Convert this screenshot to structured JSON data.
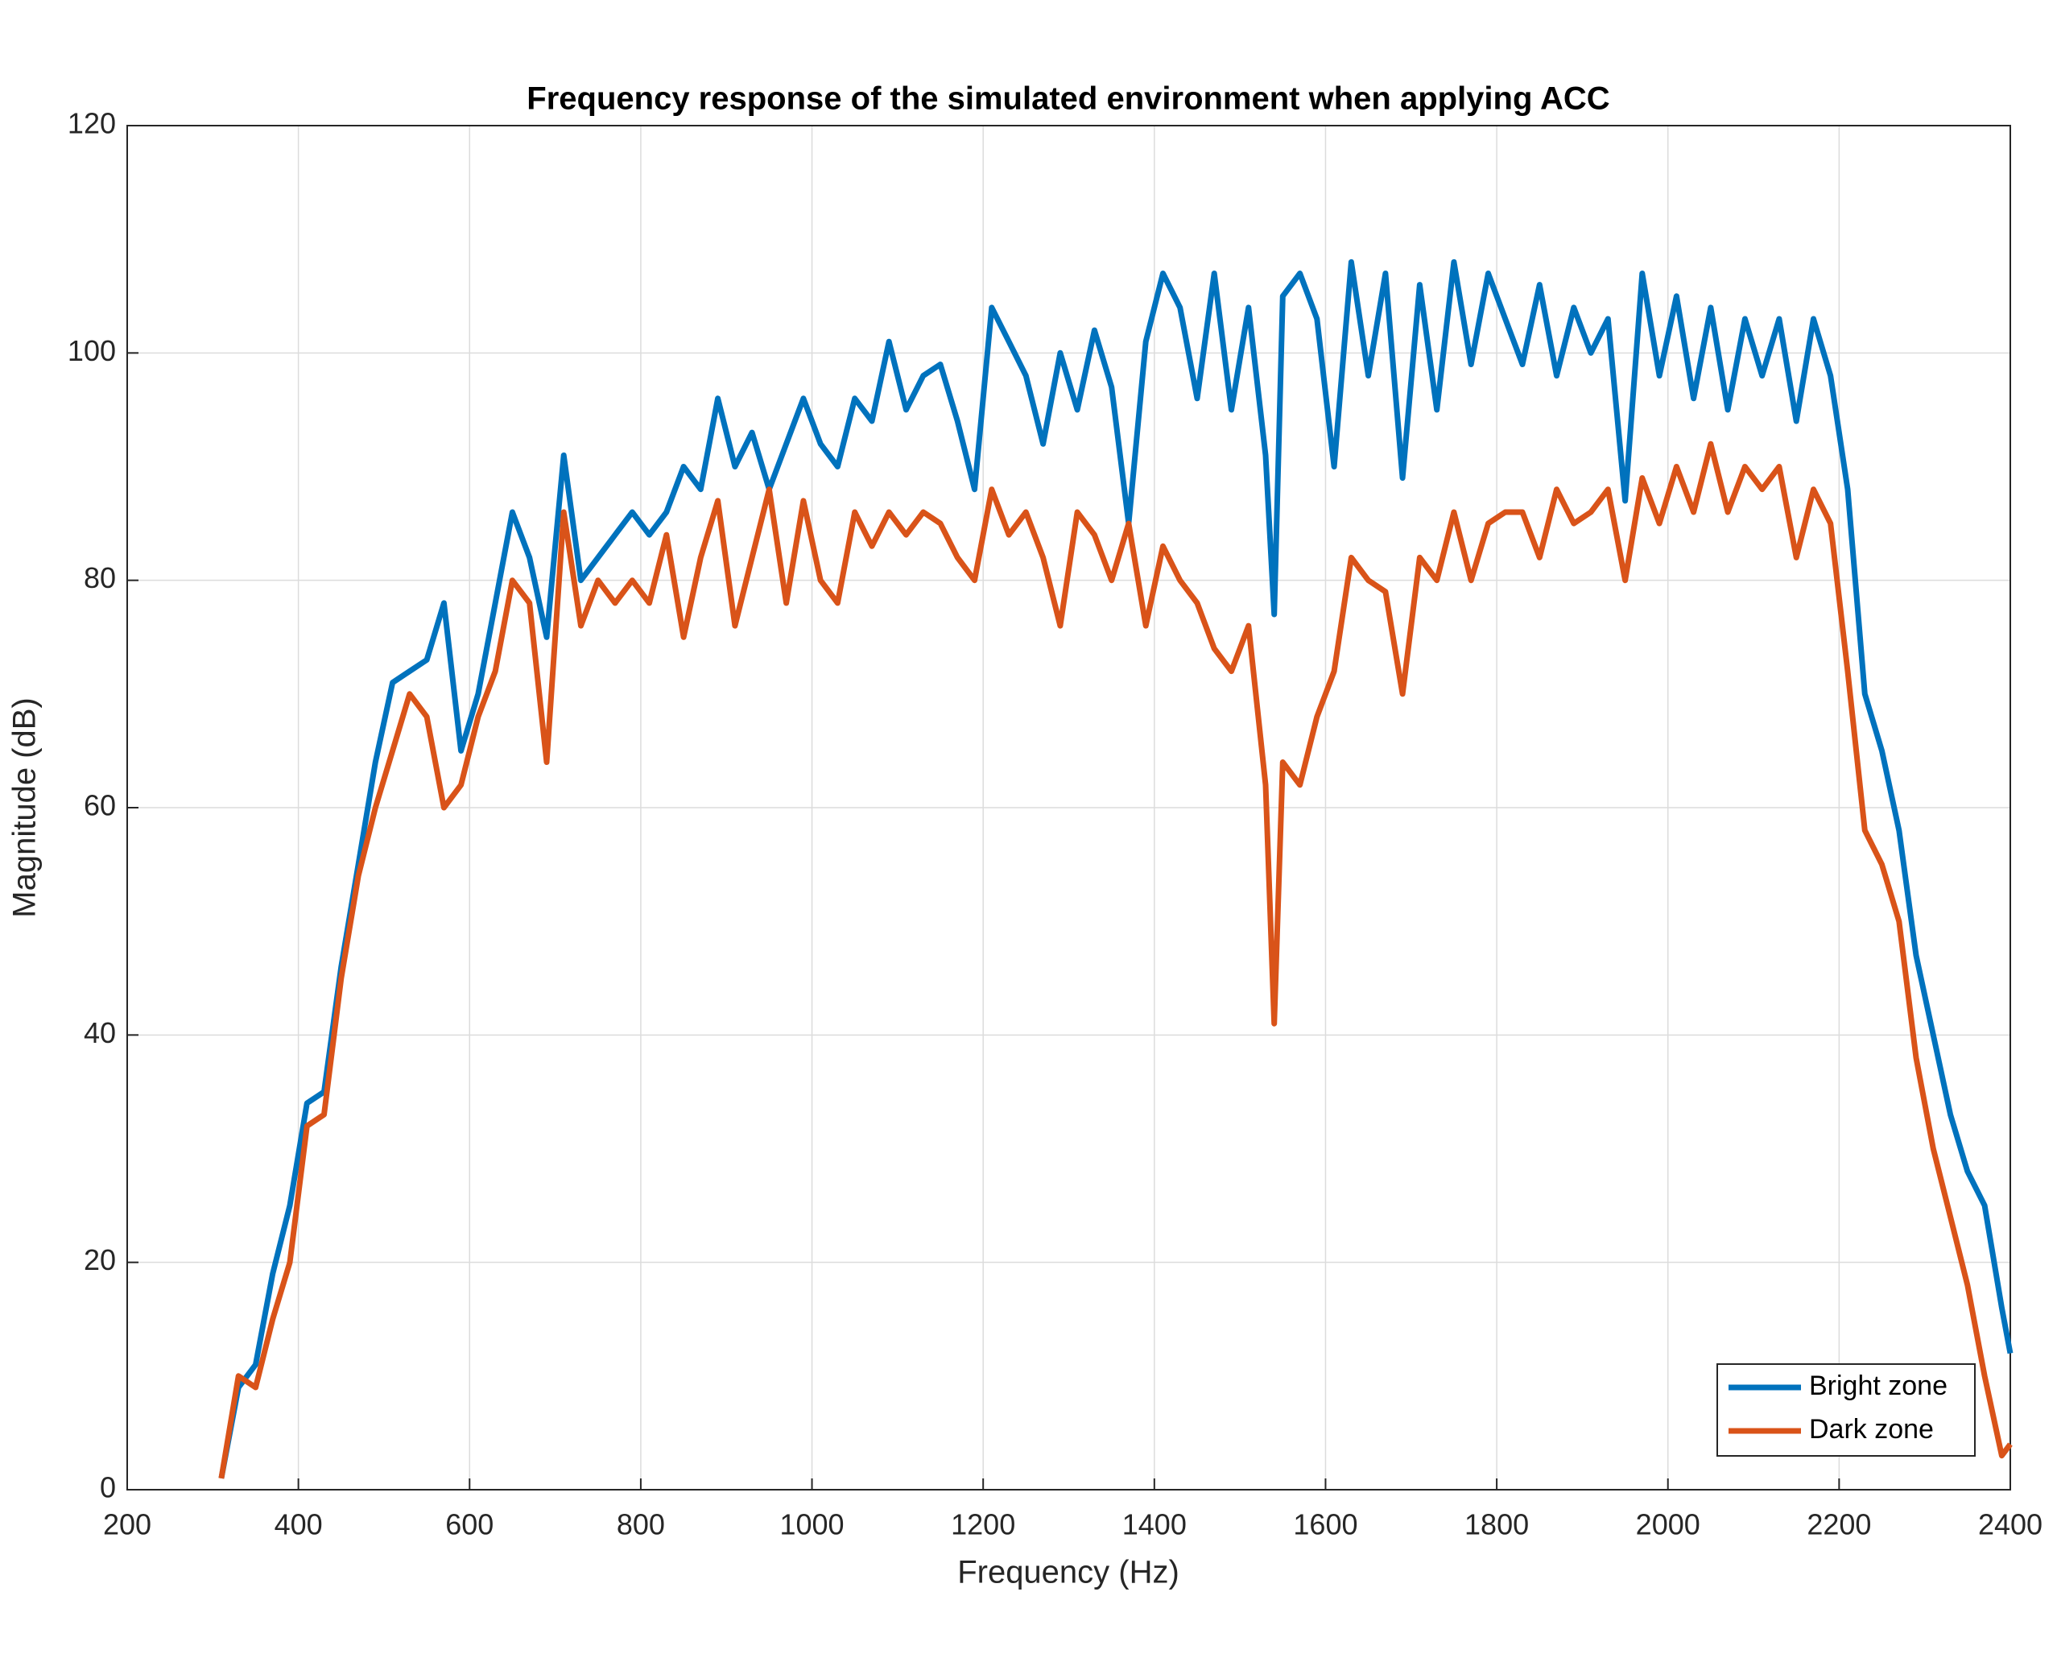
{
  "chart_data": {
    "type": "line",
    "title": "Frequency response of the simulated environment when applying ACC",
    "x_label": "Frequency (Hz)",
    "y_label": "Magnitude (dB)",
    "x": [
      310,
      330,
      350,
      370,
      390,
      410,
      430,
      450,
      470,
      490,
      510,
      530,
      550,
      570,
      590,
      610,
      630,
      650,
      670,
      690,
      710,
      730,
      750,
      770,
      790,
      810,
      830,
      850,
      870,
      890,
      910,
      930,
      950,
      970,
      990,
      1010,
      1030,
      1050,
      1070,
      1090,
      1110,
      1130,
      1150,
      1170,
      1190,
      1210,
      1230,
      1250,
      1270,
      1290,
      1310,
      1330,
      1350,
      1370,
      1390,
      1410,
      1430,
      1450,
      1470,
      1490,
      1510,
      1530,
      1540,
      1550,
      1570,
      1590,
      1610,
      1630,
      1650,
      1670,
      1690,
      1710,
      1730,
      1750,
      1770,
      1790,
      1810,
      1830,
      1850,
      1870,
      1890,
      1910,
      1930,
      1950,
      1970,
      1990,
      2010,
      2030,
      2050,
      2070,
      2090,
      2110,
      2130,
      2150,
      2170,
      2190,
      2210,
      2230,
      2250,
      2270,
      2290,
      2310,
      2330,
      2350,
      2370,
      2390,
      2400
    ],
    "series": [
      {
        "name": "Bright zone",
        "color": "#0072BD",
        "values": [
          1,
          9,
          11,
          19,
          25,
          34,
          35,
          46,
          55,
          64,
          71,
          72,
          73,
          78,
          65,
          70,
          78,
          86,
          82,
          75,
          91,
          80,
          82,
          84,
          86,
          84,
          86,
          90,
          88,
          96,
          90,
          93,
          88,
          92,
          96,
          92,
          90,
          96,
          94,
          101,
          95,
          98,
          99,
          94,
          88,
          104,
          101,
          98,
          92,
          100,
          95,
          102,
          97,
          85,
          101,
          107,
          104,
          96,
          107,
          95,
          104,
          91,
          77,
          105,
          107,
          103,
          90,
          108,
          98,
          107,
          89,
          106,
          95,
          108,
          99,
          107,
          103,
          99,
          106,
          98,
          104,
          100,
          103,
          87,
          107,
          98,
          105,
          96,
          104,
          95,
          103,
          98,
          103,
          94,
          103,
          98,
          88,
          70,
          65,
          58,
          47,
          40,
          33,
          28,
          25,
          16,
          12
        ]
      },
      {
        "name": "Dark zone",
        "color": "#D95319",
        "values": [
          1,
          10,
          9,
          15,
          20,
          32,
          33,
          45,
          54,
          60,
          65,
          70,
          68,
          60,
          62,
          68,
          72,
          80,
          78,
          64,
          86,
          76,
          80,
          78,
          80,
          78,
          84,
          75,
          82,
          87,
          76,
          82,
          88,
          78,
          87,
          80,
          78,
          86,
          83,
          86,
          84,
          86,
          85,
          82,
          80,
          88,
          84,
          86,
          82,
          76,
          86,
          84,
          80,
          85,
          76,
          83,
          80,
          78,
          74,
          72,
          76,
          62,
          41,
          64,
          62,
          68,
          72,
          82,
          80,
          79,
          70,
          82,
          80,
          86,
          80,
          85,
          86,
          86,
          82,
          88,
          85,
          86,
          88,
          80,
          89,
          85,
          90,
          86,
          92,
          86,
          90,
          88,
          90,
          82,
          88,
          85,
          72,
          58,
          55,
          50,
          38,
          30,
          24,
          18,
          10,
          3,
          4
        ]
      }
    ],
    "xlim": [
      200,
      2400
    ],
    "xticks": [
      200,
      400,
      600,
      800,
      1000,
      1200,
      1400,
      1600,
      1800,
      2000,
      2200,
      2400
    ],
    "ylim": [
      0,
      120
    ],
    "yticks": [
      0,
      20,
      40,
      60,
      80,
      100,
      120
    ],
    "grid": true,
    "legend": "lower right"
  }
}
